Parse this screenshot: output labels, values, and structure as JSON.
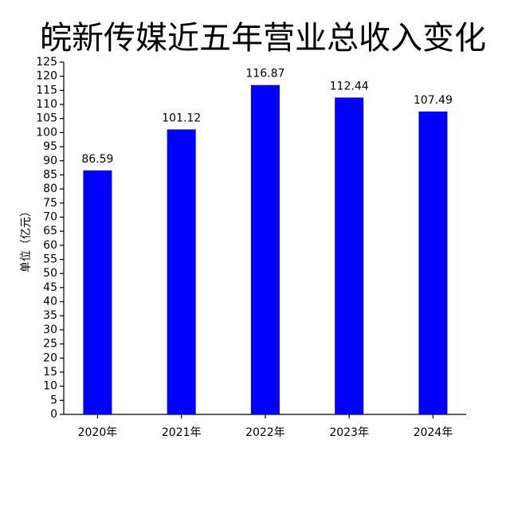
{
  "chart_data": {
    "type": "bar",
    "title": "皖新传媒近五年营业总收入变化",
    "ylabel": "单位（亿元）",
    "categories": [
      "2020年",
      "2021年",
      "2022年",
      "2023年",
      "2024年"
    ],
    "values": [
      86.59,
      101.12,
      116.87,
      112.44,
      107.49
    ],
    "color": "#0000ff",
    "ylim": [
      0,
      125
    ],
    "yticks": [
      0,
      5,
      10,
      15,
      20,
      25,
      30,
      35,
      40,
      45,
      50,
      55,
      60,
      65,
      70,
      75,
      80,
      85,
      90,
      95,
      100,
      105,
      110,
      115,
      120,
      125
    ],
    "grid": false
  }
}
